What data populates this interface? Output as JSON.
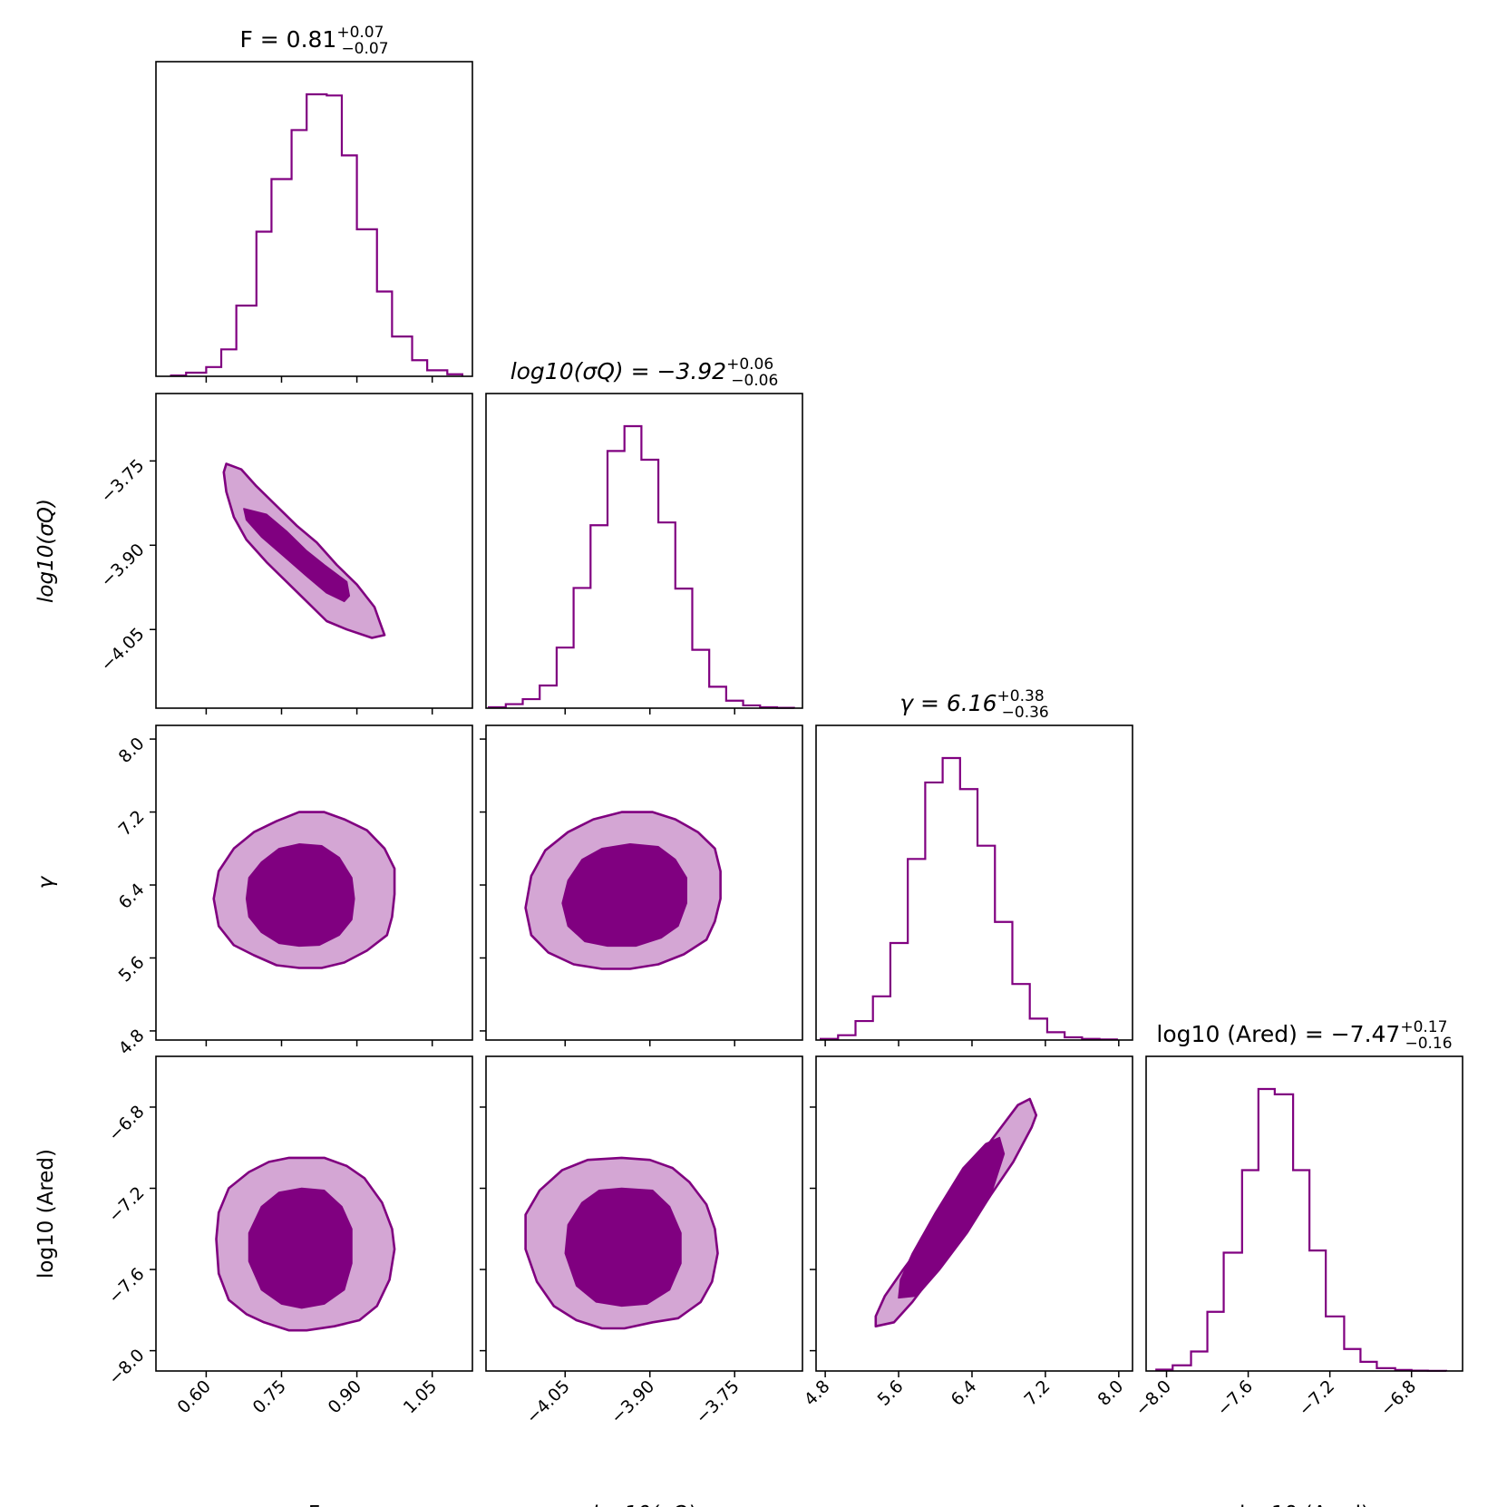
{
  "colors": {
    "accent": "#800080",
    "inner_fill": "#800080",
    "outer_fill": "#d4a6d4",
    "outline": "#800080"
  },
  "chart_data": {
    "type": "corner",
    "parameters": [
      {
        "id": "F",
        "axis_label": "F",
        "title": {
          "prefix": "F = 0.81",
          "sup": "+0.07",
          "sub": "−0.07"
        },
        "range": [
          0.5,
          1.13
        ],
        "ticks": [
          0.6,
          0.75,
          0.9,
          1.05
        ],
        "tick_labels": [
          "0.60",
          "0.75",
          "0.90",
          "1.05"
        ],
        "median": 0.81,
        "err_plus": 0.07,
        "err_minus": 0.07
      },
      {
        "id": "log10_sigma_Q",
        "axis_label": "log10(σQ)",
        "title": {
          "prefix": "log10(σQ) = −3.92",
          "sup": "+0.06",
          "sub": "−0.06"
        },
        "range": [
          -4.19,
          -3.63
        ],
        "ticks": [
          -4.05,
          -3.9,
          -3.75
        ],
        "tick_labels": [
          "−4.05",
          "−3.90",
          "−3.75"
        ],
        "median": -3.92,
        "err_plus": 0.06,
        "err_minus": 0.06
      },
      {
        "id": "gamma",
        "axis_label": "γ",
        "title": {
          "prefix": "γ = 6.16",
          "sup": "+0.38",
          "sub": "−0.36"
        },
        "range": [
          4.7,
          8.15
        ],
        "ticks": [
          4.8,
          5.6,
          6.4,
          7.2,
          8.0
        ],
        "tick_labels": [
          "4.8",
          "5.6",
          "6.4",
          "7.2",
          "8.0"
        ],
        "median": 6.16,
        "err_plus": 0.38,
        "err_minus": 0.36
      },
      {
        "id": "log10_A_red",
        "axis_label": "log10 (Ared)",
        "title": {
          "prefix": "log10 (Ared) = −7.47",
          "sup": "+0.17",
          "sub": "−0.16"
        },
        "range": [
          -8.1,
          -6.55
        ],
        "ticks": [
          -8.0,
          -7.6,
          -7.2,
          -6.8
        ],
        "tick_labels": [
          "−8.0",
          "−7.6",
          "−7.2",
          "−6.8"
        ],
        "median": -7.47,
        "err_plus": 0.17,
        "err_minus": 0.16
      }
    ],
    "histograms": [
      {
        "param": 0,
        "edges": [
          0.53,
          0.56,
          0.6,
          0.63,
          0.66,
          0.7,
          0.73,
          0.77,
          0.8,
          0.84,
          0.87,
          0.9,
          0.94,
          0.97,
          1.01,
          1.04,
          1.08,
          1.11
        ],
        "counts": [
          0.2,
          0.9,
          2.3,
          6.7,
          17.6,
          36.0,
          49.1,
          61.3,
          70.2,
          69.9,
          55.0,
          36.6,
          21.1,
          9.9,
          4.0,
          1.5,
          0.5
        ]
      },
      {
        "param": 1,
        "edges": [
          -4.185,
          -4.155,
          -4.125,
          -4.095,
          -4.065,
          -4.035,
          -4.005,
          -3.975,
          -3.945,
          -3.915,
          -3.885,
          -3.855,
          -3.825,
          -3.795,
          -3.765,
          -3.735,
          -3.705,
          -3.675,
          -3.645
        ],
        "counts": [
          0.3,
          1.3,
          2.9,
          7.3,
          19.5,
          38.7,
          58.9,
          82.8,
          90.8,
          80.0,
          59.8,
          38.5,
          18.8,
          6.9,
          2.4,
          0.9,
          0.3,
          0.1
        ]
      },
      {
        "param": 2,
        "edges": [
          4.75,
          4.94,
          5.13,
          5.32,
          5.51,
          5.7,
          5.89,
          6.08,
          6.27,
          6.46,
          6.65,
          6.84,
          7.03,
          7.22,
          7.41,
          7.6,
          7.79,
          7.98
        ],
        "counts": [
          0.4,
          1.6,
          6.3,
          14.5,
          32.2,
          60.1,
          85.5,
          93.6,
          83.3,
          64.5,
          39.2,
          18.6,
          7.1,
          2.6,
          0.9,
          0.4,
          0.2
        ]
      },
      {
        "param": 3,
        "edges": [
          -8.05,
          -7.97,
          -7.88,
          -7.8,
          -7.72,
          -7.63,
          -7.55,
          -7.47,
          -7.38,
          -7.3,
          -7.22,
          -7.13,
          -7.05,
          -6.97,
          -6.88,
          -6.8,
          -6.72,
          -6.63
        ],
        "counts": [
          0.4,
          1.6,
          5.5,
          16.7,
          33.4,
          56.7,
          79.6,
          78.1,
          56.7,
          34.0,
          15.4,
          6.2,
          2.6,
          0.8,
          0.3,
          0.1,
          0.05
        ]
      }
    ],
    "contours": [
      {
        "x": 0,
        "y": 1,
        "outer": [
          [
            0.64,
            -3.755
          ],
          [
            0.67,
            -3.765
          ],
          [
            0.7,
            -3.795
          ],
          [
            0.74,
            -3.83
          ],
          [
            0.78,
            -3.865
          ],
          [
            0.82,
            -3.895
          ],
          [
            0.86,
            -3.935
          ],
          [
            0.9,
            -3.97
          ],
          [
            0.935,
            -4.01
          ],
          [
            0.945,
            -4.035
          ],
          [
            0.955,
            -4.06
          ],
          [
            0.93,
            -4.065
          ],
          [
            0.88,
            -4.05
          ],
          [
            0.84,
            -4.035
          ],
          [
            0.8,
            -4.0
          ],
          [
            0.76,
            -3.965
          ],
          [
            0.72,
            -3.93
          ],
          [
            0.68,
            -3.89
          ],
          [
            0.655,
            -3.85
          ],
          [
            0.64,
            -3.805
          ],
          [
            0.635,
            -3.77
          ]
        ],
        "inner": [
          [
            0.675,
            -3.835
          ],
          [
            0.72,
            -3.845
          ],
          [
            0.76,
            -3.875
          ],
          [
            0.8,
            -3.91
          ],
          [
            0.835,
            -3.935
          ],
          [
            0.88,
            -3.965
          ],
          [
            0.885,
            -3.99
          ],
          [
            0.875,
            -4.0
          ],
          [
            0.84,
            -3.985
          ],
          [
            0.8,
            -3.955
          ],
          [
            0.755,
            -3.92
          ],
          [
            0.71,
            -3.885
          ],
          [
            0.68,
            -3.855
          ]
        ]
      },
      {
        "x": 0,
        "y": 2,
        "outer": [
          [
            0.785,
            7.2
          ],
          [
            0.835,
            7.2
          ],
          [
            0.875,
            7.12
          ],
          [
            0.92,
            7.0
          ],
          [
            0.955,
            6.8
          ],
          [
            0.975,
            6.58
          ],
          [
            0.975,
            6.3
          ],
          [
            0.97,
            6.05
          ],
          [
            0.96,
            5.85
          ],
          [
            0.92,
            5.68
          ],
          [
            0.875,
            5.55
          ],
          [
            0.83,
            5.49
          ],
          [
            0.785,
            5.49
          ],
          [
            0.74,
            5.52
          ],
          [
            0.695,
            5.63
          ],
          [
            0.655,
            5.74
          ],
          [
            0.625,
            5.95
          ],
          [
            0.615,
            6.25
          ],
          [
            0.625,
            6.55
          ],
          [
            0.655,
            6.8
          ],
          [
            0.695,
            6.98
          ],
          [
            0.74,
            7.1
          ]
        ],
        "inner": [
          [
            0.785,
            6.85
          ],
          [
            0.83,
            6.83
          ],
          [
            0.865,
            6.7
          ],
          [
            0.89,
            6.48
          ],
          [
            0.895,
            6.25
          ],
          [
            0.89,
            6.02
          ],
          [
            0.865,
            5.85
          ],
          [
            0.825,
            5.74
          ],
          [
            0.785,
            5.73
          ],
          [
            0.745,
            5.76
          ],
          [
            0.71,
            5.88
          ],
          [
            0.685,
            6.05
          ],
          [
            0.68,
            6.25
          ],
          [
            0.685,
            6.48
          ],
          [
            0.71,
            6.65
          ],
          [
            0.745,
            6.8
          ]
        ]
      },
      {
        "x": 1,
        "y": 2,
        "outer": [
          [
            -3.95,
            7.2
          ],
          [
            -3.895,
            7.2
          ],
          [
            -3.855,
            7.12
          ],
          [
            -3.815,
            6.98
          ],
          [
            -3.785,
            6.8
          ],
          [
            -3.775,
            6.55
          ],
          [
            -3.775,
            6.25
          ],
          [
            -3.785,
            6.0
          ],
          [
            -3.8,
            5.8
          ],
          [
            -3.84,
            5.64
          ],
          [
            -3.885,
            5.53
          ],
          [
            -3.935,
            5.48
          ],
          [
            -3.985,
            5.48
          ],
          [
            -4.035,
            5.53
          ],
          [
            -4.08,
            5.66
          ],
          [
            -4.11,
            5.85
          ],
          [
            -4.12,
            6.15
          ],
          [
            -4.11,
            6.5
          ],
          [
            -4.085,
            6.78
          ],
          [
            -4.045,
            6.98
          ],
          [
            -4.0,
            7.12
          ]
        ],
        "inner": [
          [
            -3.935,
            6.85
          ],
          [
            -3.885,
            6.82
          ],
          [
            -3.855,
            6.68
          ],
          [
            -3.835,
            6.48
          ],
          [
            -3.835,
            6.2
          ],
          [
            -3.85,
            5.95
          ],
          [
            -3.88,
            5.82
          ],
          [
            -3.925,
            5.73
          ],
          [
            -3.975,
            5.73
          ],
          [
            -4.015,
            5.78
          ],
          [
            -4.045,
            5.95
          ],
          [
            -4.055,
            6.2
          ],
          [
            -4.045,
            6.45
          ],
          [
            -4.02,
            6.68
          ],
          [
            -3.985,
            6.8
          ]
        ]
      },
      {
        "x": 0,
        "y": 3,
        "outer": [
          [
            0.765,
            -7.05
          ],
          [
            0.835,
            -7.05
          ],
          [
            0.88,
            -7.09
          ],
          [
            0.915,
            -7.15
          ],
          [
            0.95,
            -7.27
          ],
          [
            0.97,
            -7.4
          ],
          [
            0.975,
            -7.5
          ],
          [
            0.965,
            -7.65
          ],
          [
            0.94,
            -7.78
          ],
          [
            0.905,
            -7.85
          ],
          [
            0.855,
            -7.88
          ],
          [
            0.8,
            -7.9
          ],
          [
            0.765,
            -7.9
          ],
          [
            0.715,
            -7.86
          ],
          [
            0.68,
            -7.82
          ],
          [
            0.645,
            -7.75
          ],
          [
            0.625,
            -7.62
          ],
          [
            0.62,
            -7.45
          ],
          [
            0.625,
            -7.32
          ],
          [
            0.645,
            -7.2
          ],
          [
            0.685,
            -7.12
          ],
          [
            0.725,
            -7.07
          ]
        ],
        "inner": [
          [
            0.79,
            -7.2
          ],
          [
            0.835,
            -7.21
          ],
          [
            0.87,
            -7.29
          ],
          [
            0.89,
            -7.4
          ],
          [
            0.89,
            -7.57
          ],
          [
            0.875,
            -7.7
          ],
          [
            0.835,
            -7.77
          ],
          [
            0.79,
            -7.79
          ],
          [
            0.75,
            -7.77
          ],
          [
            0.71,
            -7.7
          ],
          [
            0.685,
            -7.56
          ],
          [
            0.685,
            -7.42
          ],
          [
            0.71,
            -7.29
          ],
          [
            0.745,
            -7.22
          ]
        ]
      },
      {
        "x": 1,
        "y": 3,
        "outer": [
          [
            -3.95,
            -7.05
          ],
          [
            -3.9,
            -7.06
          ],
          [
            -3.86,
            -7.1
          ],
          [
            -3.83,
            -7.17
          ],
          [
            -3.8,
            -7.28
          ],
          [
            -3.785,
            -7.4
          ],
          [
            -3.78,
            -7.52
          ],
          [
            -3.79,
            -7.66
          ],
          [
            -3.81,
            -7.76
          ],
          [
            -3.85,
            -7.84
          ],
          [
            -3.895,
            -7.86
          ],
          [
            -3.945,
            -7.89
          ],
          [
            -3.985,
            -7.89
          ],
          [
            -4.03,
            -7.85
          ],
          [
            -4.07,
            -7.78
          ],
          [
            -4.1,
            -7.66
          ],
          [
            -4.12,
            -7.5
          ],
          [
            -4.12,
            -7.33
          ],
          [
            -4.095,
            -7.21
          ],
          [
            -4.055,
            -7.11
          ],
          [
            -4.01,
            -7.06
          ]
        ],
        "inner": [
          [
            -3.95,
            -7.2
          ],
          [
            -3.895,
            -7.21
          ],
          [
            -3.865,
            -7.29
          ],
          [
            -3.845,
            -7.42
          ],
          [
            -3.845,
            -7.57
          ],
          [
            -3.865,
            -7.7
          ],
          [
            -3.905,
            -7.77
          ],
          [
            -3.95,
            -7.78
          ],
          [
            -3.995,
            -7.76
          ],
          [
            -4.03,
            -7.68
          ],
          [
            -4.05,
            -7.52
          ],
          [
            -4.045,
            -7.38
          ],
          [
            -4.02,
            -7.27
          ],
          [
            -3.99,
            -7.21
          ]
        ]
      },
      {
        "x": 2,
        "y": 3,
        "outer": [
          [
            5.35,
            -7.88
          ],
          [
            5.55,
            -7.86
          ],
          [
            5.75,
            -7.76
          ],
          [
            5.95,
            -7.64
          ],
          [
            6.25,
            -7.46
          ],
          [
            6.55,
            -7.27
          ],
          [
            6.85,
            -7.07
          ],
          [
            7.05,
            -6.9
          ],
          [
            7.1,
            -6.84
          ],
          [
            7.03,
            -6.76
          ],
          [
            6.9,
            -6.79
          ],
          [
            6.6,
            -6.97
          ],
          [
            6.25,
            -7.2
          ],
          [
            5.95,
            -7.42
          ],
          [
            5.65,
            -7.6
          ],
          [
            5.45,
            -7.73
          ],
          [
            5.35,
            -7.83
          ]
        ],
        "inner": [
          [
            5.6,
            -7.74
          ],
          [
            5.8,
            -7.73
          ],
          [
            6.05,
            -7.6
          ],
          [
            6.35,
            -7.42
          ],
          [
            6.6,
            -7.24
          ],
          [
            6.75,
            -7.03
          ],
          [
            6.7,
            -6.95
          ],
          [
            6.55,
            -6.98
          ],
          [
            6.3,
            -7.1
          ],
          [
            6.0,
            -7.32
          ],
          [
            5.75,
            -7.52
          ],
          [
            5.62,
            -7.65
          ]
        ]
      }
    ]
  }
}
